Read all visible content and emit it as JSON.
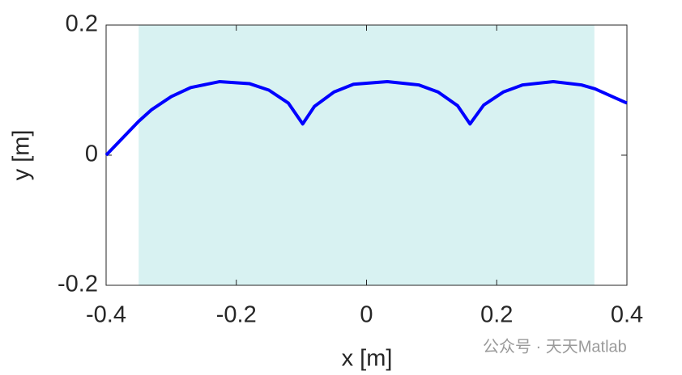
{
  "chart_data": {
    "type": "line",
    "x_label": "x  [m]",
    "y_label": "y  [m]",
    "x": [
      -0.4,
      -0.35,
      -0.33,
      -0.3,
      -0.27,
      -0.226,
      -0.18,
      -0.15,
      -0.12,
      -0.098,
      -0.08,
      -0.05,
      -0.02,
      0.032,
      0.08,
      0.11,
      0.14,
      0.159,
      0.18,
      0.21,
      0.24,
      0.287,
      0.33,
      0.351,
      0.4
    ],
    "series": [
      {
        "color": "#0000ff",
        "values": [
          0,
          0.052,
          0.07,
          0.09,
          0.104,
          0.113,
          0.11,
          0.1,
          0.08,
          0.048,
          0.075,
          0.097,
          0.109,
          0.113,
          0.108,
          0.097,
          0.076,
          0.048,
          0.077,
          0.097,
          0.108,
          0.113,
          0.108,
          0.102,
          0.08
        ]
      }
    ],
    "shaded_xrange": [
      -0.35,
      0.35
    ],
    "shade_color": "#d8f2f2",
    "xlim": [
      -0.4,
      0.4
    ],
    "xticks": [
      -0.4,
      -0.2,
      0,
      0.2,
      0.4
    ],
    "ylim": [
      -0.2,
      0.2
    ],
    "yticks": [
      -0.2,
      0,
      0.2
    ]
  },
  "watermark": "公众号 · 天天Matlab"
}
